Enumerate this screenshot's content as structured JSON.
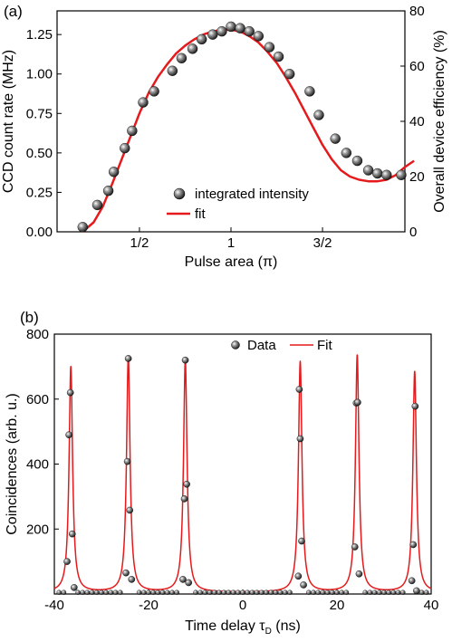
{
  "chart_data": [
    {
      "type": "scatter",
      "panel_label": "(a)",
      "xlabel": "Pulse area (π)",
      "ylabel": "CCD count rate (MHz)",
      "ylabel_right": "Overall device efficiency (%)",
      "xlim": [
        0.05,
        1.95
      ],
      "ylim": [
        0,
        1.4
      ],
      "ylim_right": [
        0,
        80
      ],
      "x_ticks": [
        {
          "value": 0.5,
          "label": "1/2"
        },
        {
          "value": 1.0,
          "label": "1"
        },
        {
          "value": 1.5,
          "label": "3/2"
        }
      ],
      "y_ticks": [
        {
          "value": 0.0,
          "label": "0.00"
        },
        {
          "value": 0.25,
          "label": "0.25"
        },
        {
          "value": 0.5,
          "label": "0.50"
        },
        {
          "value": 0.75,
          "label": "0.75"
        },
        {
          "value": 1.0,
          "label": "1.00"
        },
        {
          "value": 1.25,
          "label": "1.25"
        }
      ],
      "y_ticks_right": [
        {
          "value": 0,
          "label": "0"
        },
        {
          "value": 20,
          "label": "20"
        },
        {
          "value": 40,
          "label": "40"
        },
        {
          "value": 60,
          "label": "60"
        },
        {
          "value": 80,
          "label": "80"
        }
      ],
      "grid": false,
      "legend_position": "bottom-center",
      "series": [
        {
          "name": "integrated intensity",
          "kind": "points",
          "color": "#222222",
          "points": [
            [
              0.19,
              0.03
            ],
            [
              0.27,
              0.17
            ],
            [
              0.33,
              0.26
            ],
            [
              0.36,
              0.38
            ],
            [
              0.42,
              0.53
            ],
            [
              0.46,
              0.64
            ],
            [
              0.52,
              0.82
            ],
            [
              0.58,
              0.89
            ],
            [
              0.68,
              1.02
            ],
            [
              0.73,
              1.1
            ],
            [
              0.79,
              1.16
            ],
            [
              0.84,
              1.22
            ],
            [
              0.9,
              1.25
            ],
            [
              0.95,
              1.27
            ],
            [
              1.0,
              1.3
            ],
            [
              1.05,
              1.29
            ],
            [
              1.1,
              1.27
            ],
            [
              1.15,
              1.24
            ],
            [
              1.21,
              1.17
            ],
            [
              1.26,
              1.11
            ],
            [
              1.32,
              1.0
            ],
            [
              1.43,
              0.89
            ],
            [
              1.48,
              0.74
            ],
            [
              1.57,
              0.59
            ],
            [
              1.63,
              0.5
            ],
            [
              1.69,
              0.45
            ],
            [
              1.75,
              0.39
            ],
            [
              1.8,
              0.37
            ],
            [
              1.85,
              0.36
            ],
            [
              1.93,
              0.36
            ],
            [
              1.99,
              0.41
            ]
          ]
        },
        {
          "name": "fit",
          "kind": "line",
          "color": "#e41a1c",
          "points": [
            [
              0.19,
              0.0
            ],
            [
              0.25,
              0.06
            ],
            [
              0.3,
              0.16
            ],
            [
              0.35,
              0.3
            ],
            [
              0.4,
              0.45
            ],
            [
              0.45,
              0.6
            ],
            [
              0.5,
              0.75
            ],
            [
              0.55,
              0.88
            ],
            [
              0.6,
              0.98
            ],
            [
              0.65,
              1.06
            ],
            [
              0.7,
              1.13
            ],
            [
              0.75,
              1.18
            ],
            [
              0.8,
              1.22
            ],
            [
              0.85,
              1.25
            ],
            [
              0.9,
              1.27
            ],
            [
              0.95,
              1.28
            ],
            [
              1.0,
              1.28
            ],
            [
              1.05,
              1.27
            ],
            [
              1.1,
              1.24
            ],
            [
              1.15,
              1.2
            ],
            [
              1.2,
              1.14
            ],
            [
              1.25,
              1.07
            ],
            [
              1.3,
              0.98
            ],
            [
              1.35,
              0.88
            ],
            [
              1.4,
              0.77
            ],
            [
              1.45,
              0.66
            ],
            [
              1.5,
              0.55
            ],
            [
              1.55,
              0.46
            ],
            [
              1.6,
              0.39
            ],
            [
              1.65,
              0.35
            ],
            [
              1.7,
              0.33
            ],
            [
              1.75,
              0.32
            ],
            [
              1.8,
              0.32
            ],
            [
              1.85,
              0.33
            ],
            [
              1.9,
              0.36
            ],
            [
              1.95,
              0.41
            ],
            [
              2.0,
              0.45
            ]
          ]
        }
      ]
    },
    {
      "type": "line",
      "panel_label": "(b)",
      "xlabel": "Time delay τ",
      "xlabel_sub": "D",
      "xlabel_suffix": " (ns)",
      "ylabel": "Coincidences (arb. u.)",
      "xlim": [
        -40,
        40
      ],
      "ylim": [
        0,
        800
      ],
      "x_ticks": [
        {
          "value": -40,
          "label": "-40"
        },
        {
          "value": -20,
          "label": "-20"
        },
        {
          "value": 0,
          "label": "0"
        },
        {
          "value": 20,
          "label": "20"
        },
        {
          "value": 40,
          "label": "40"
        }
      ],
      "y_ticks": [
        {
          "value": 200,
          "label": "200"
        },
        {
          "value": 400,
          "label": "400"
        },
        {
          "value": 600,
          "label": "600"
        },
        {
          "value": 800,
          "label": "800"
        }
      ],
      "grid": false,
      "legend_position": "top-center",
      "peaks": [
        {
          "center": -36.5,
          "height": 700
        },
        {
          "center": -24.3,
          "height": 730
        },
        {
          "center": -12.2,
          "height": 720
        },
        {
          "center": 12.2,
          "height": 715
        },
        {
          "center": 24.3,
          "height": 735
        },
        {
          "center": 36.5,
          "height": 685
        }
      ],
      "peak_width_ns": 0.45,
      "baseline": 5,
      "series": [
        {
          "name": "Data",
          "kind": "points",
          "color": "#222222",
          "points": [
            [
              -37.3,
              100
            ],
            [
              -36.9,
              490
            ],
            [
              -36.6,
              620
            ],
            [
              -36.2,
              185
            ],
            [
              -35.8,
              20
            ],
            [
              -24.8,
              65
            ],
            [
              -24.5,
              408
            ],
            [
              -24.3,
              725
            ],
            [
              -24.0,
              258
            ],
            [
              -23.6,
              45
            ],
            [
              -12.7,
              45
            ],
            [
              -12.4,
              293
            ],
            [
              -12.2,
              720
            ],
            [
              -11.9,
              338
            ],
            [
              -11.5,
              35
            ],
            [
              11.8,
              55
            ],
            [
              12.0,
              630
            ],
            [
              12.2,
              478
            ],
            [
              12.5,
              163
            ],
            [
              12.9,
              28
            ],
            [
              23.8,
              145
            ],
            [
              24.1,
              588
            ],
            [
              24.4,
              590
            ],
            [
              24.7,
              62
            ],
            [
              35.9,
              41
            ],
            [
              36.2,
              152
            ],
            [
              36.6,
              578
            ],
            [
              36.9,
              10
            ]
          ],
          "baseline_points_x": [
            -39,
            -38,
            -35,
            -34,
            -33,
            -32,
            -31,
            -30,
            -29,
            -28,
            -27,
            -26,
            -22,
            -21,
            -20,
            -19,
            -18,
            -17,
            -16,
            -15,
            -14,
            -10,
            -9,
            -8,
            -7,
            -6,
            -5,
            -4,
            -3,
            -2,
            -1,
            0,
            1,
            2,
            3,
            4,
            5,
            6,
            7,
            8,
            9,
            10,
            14,
            15,
            16,
            17,
            18,
            19,
            20,
            21,
            22,
            26,
            27,
            28,
            29,
            30,
            31,
            32,
            33,
            34,
            38,
            39
          ]
        },
        {
          "name": "Fit",
          "kind": "line",
          "color": "#e41a1c"
        }
      ]
    }
  ]
}
